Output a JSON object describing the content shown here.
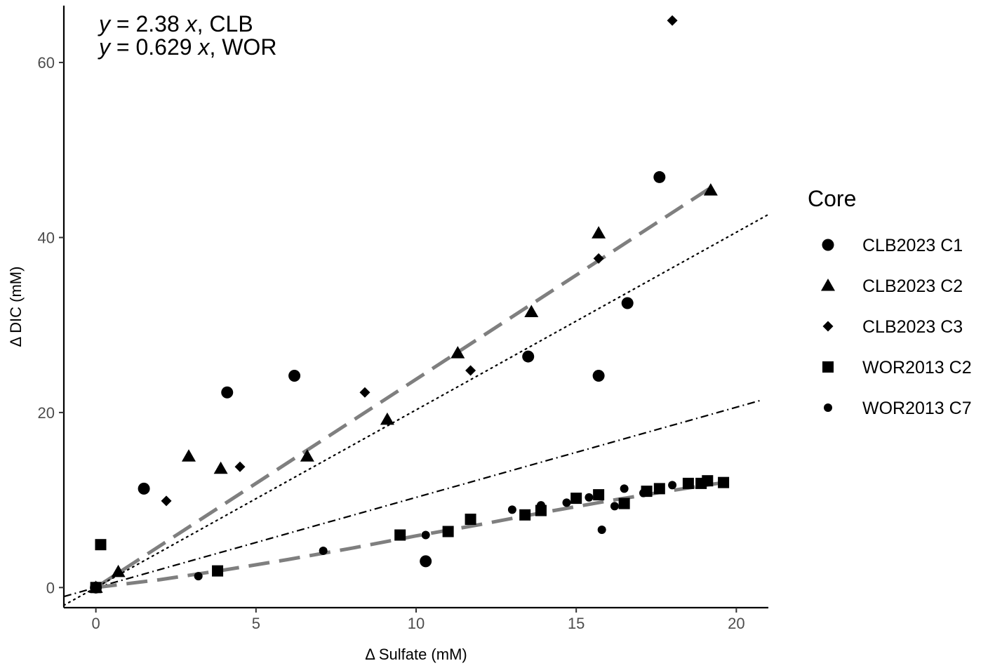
{
  "chart_data": {
    "type": "scatter",
    "xlabel": "Δ Sulfate (mM)",
    "ylabel": "Δ DIC (mM)",
    "xlim": [
      -1,
      21
    ],
    "ylim": [
      -2.3,
      66.5
    ],
    "x_ticks": [
      0,
      5,
      10,
      15,
      20
    ],
    "y_ticks": [
      0,
      20,
      40,
      60
    ],
    "grid": false,
    "annotations": [
      {
        "var": "y",
        "text": " = 2.38 ",
        "var2": "x",
        "suffix": ", CLB"
      },
      {
        "var": "y",
        "text": " = 0.629 ",
        "var2": "x",
        "suffix": ", WOR"
      }
    ],
    "legend": {
      "title": "Core",
      "placement": "right",
      "entries": [
        {
          "label": "CLB2023 C1",
          "shape": "circle"
        },
        {
          "label": "CLB2023 C2",
          "shape": "triangle"
        },
        {
          "label": "CLB2023 C3",
          "shape": "diamond"
        },
        {
          "label": "WOR2013 C2",
          "shape": "square"
        },
        {
          "label": "WOR2013 C7",
          "shape": "small-circle"
        }
      ]
    },
    "series": [
      {
        "name": "CLB2023 C1",
        "shape": "circle",
        "points": [
          [
            0,
            0
          ],
          [
            1.5,
            11.3
          ],
          [
            4.1,
            22.3
          ],
          [
            6.2,
            24.2
          ],
          [
            10.3,
            3.0
          ],
          [
            13.5,
            26.4
          ],
          [
            15.7,
            24.2
          ],
          [
            16.6,
            32.5
          ],
          [
            17.6,
            46.9
          ]
        ]
      },
      {
        "name": "CLB2023 C2",
        "shape": "triangle",
        "points": [
          [
            0,
            0
          ],
          [
            0.7,
            1.8
          ],
          [
            2.9,
            15.0
          ],
          [
            3.9,
            13.6
          ],
          [
            6.6,
            15.0
          ],
          [
            9.1,
            19.2
          ],
          [
            11.3,
            26.8
          ],
          [
            13.6,
            31.5
          ],
          [
            15.7,
            40.5
          ],
          [
            19.2,
            45.4
          ]
        ]
      },
      {
        "name": "CLB2023 C3",
        "shape": "diamond",
        "points": [
          [
            0,
            0
          ],
          [
            2.2,
            9.9
          ],
          [
            4.5,
            13.8
          ],
          [
            8.4,
            22.3
          ],
          [
            11.7,
            24.8
          ],
          [
            15.7,
            37.6
          ],
          [
            18.0,
            64.8
          ]
        ]
      },
      {
        "name": "WOR2013 C2",
        "shape": "square",
        "points": [
          [
            0,
            0
          ],
          [
            0.15,
            4.9
          ],
          [
            3.8,
            1.9
          ],
          [
            9.5,
            6.0
          ],
          [
            11.0,
            6.4
          ],
          [
            11.7,
            7.8
          ],
          [
            13.4,
            8.3
          ],
          [
            13.9,
            8.8
          ],
          [
            15.0,
            10.2
          ],
          [
            15.7,
            10.6
          ],
          [
            16.5,
            9.6
          ],
          [
            17.2,
            11.0
          ],
          [
            17.6,
            11.3
          ],
          [
            18.5,
            11.9
          ],
          [
            18.9,
            11.9
          ],
          [
            19.1,
            12.2
          ],
          [
            19.6,
            12.0
          ]
        ]
      },
      {
        "name": "WOR2013 C7",
        "shape": "small-circle",
        "points": [
          [
            3.2,
            1.3
          ],
          [
            7.1,
            4.2
          ],
          [
            10.3,
            6.0
          ],
          [
            13.0,
            8.9
          ],
          [
            13.9,
            9.4
          ],
          [
            14.7,
            9.7
          ],
          [
            15.4,
            10.3
          ],
          [
            15.8,
            6.6
          ],
          [
            16.2,
            9.3
          ],
          [
            16.5,
            11.3
          ],
          [
            17.1,
            10.8
          ],
          [
            18.0,
            11.7
          ]
        ]
      }
    ],
    "fit_lines": [
      {
        "style": "gray-dashed",
        "kind": "linear",
        "slope": 2.38,
        "x": [
          0,
          19.3
        ]
      },
      {
        "style": "dotted",
        "kind": "linear",
        "slope": 2.03,
        "x": [
          -1,
          21
        ]
      },
      {
        "style": "dash-dot",
        "kind": "linear",
        "slope": 1.03,
        "x": [
          -1,
          20.8
        ]
      },
      {
        "style": "gray-dashed",
        "kind": "curve",
        "x": [
          0,
          2,
          4,
          6,
          8,
          10,
          12,
          14,
          16,
          18,
          19.6
        ],
        "y": [
          0,
          0.9,
          2.0,
          3.2,
          4.5,
          5.9,
          7.2,
          8.6,
          9.9,
          11.1,
          12.0
        ]
      }
    ]
  }
}
